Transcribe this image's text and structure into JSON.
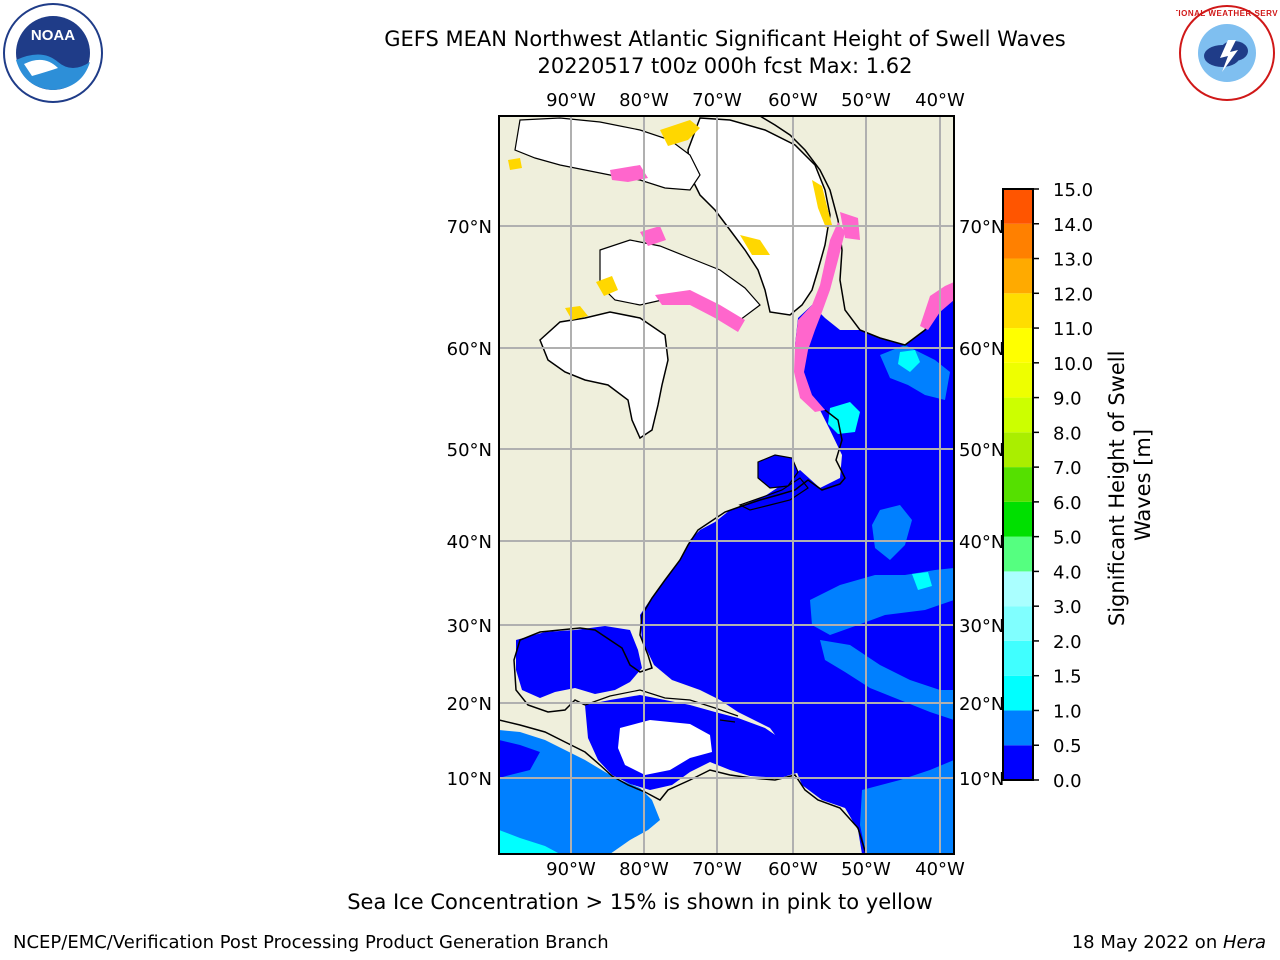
{
  "title": {
    "line1": "GEFS MEAN Northwest Atlantic Significant Height of Swell Waves",
    "line2": "20220517 t00z 000h fcst   Max: 1.62"
  },
  "map": {
    "lon_labels": [
      "90°W",
      "80°W",
      "70°W",
      "60°W",
      "50°W",
      "40°W"
    ],
    "lat_labels": [
      "70°N",
      "60°N",
      "50°N",
      "40°N",
      "30°N",
      "20°N",
      "10°N"
    ],
    "colors": {
      "land": "#efefdc",
      "ocean_0": "#0000ff",
      "ocean_05": "#0080ff",
      "ocean_10": "#00ffff",
      "ice_pink": "#ff66cc",
      "ice_yellow": "#ffd700",
      "grid": "#b0b0b0"
    }
  },
  "colorbar": {
    "tick_labels": [
      "0.0",
      "0.5",
      "1.0",
      "1.5",
      "2.0",
      "3.0",
      "4.0",
      "5.0",
      "6.0",
      "7.0",
      "8.0",
      "9.0",
      "10.0",
      "11.0",
      "12.0",
      "13.0",
      "14.0",
      "15.0"
    ],
    "colors": [
      "#0000ff",
      "#0080ff",
      "#00ffff",
      "#40ffff",
      "#80ffff",
      "#aaffff",
      "#55ff80",
      "#00e000",
      "#55e000",
      "#aaee00",
      "#ccff00",
      "#eeff00",
      "#ffff00",
      "#ffdd00",
      "#ffaa00",
      "#ff8000",
      "#ff5500",
      "#ff2a00",
      "#ff0000"
    ],
    "label_line1": "Significant Height of Swell",
    "label_line2": "Waves [m]"
  },
  "note": "Sea Ice Concentration > 15% is shown in pink to yellow",
  "footer": {
    "left": "NCEP/EMC/Verification Post Processing Product Generation Branch",
    "right_date": "18 May 2022 on ",
    "right_machine": "Hera"
  },
  "logos": {
    "noaa_text": "NOAA",
    "nws_text": "NATIONAL WEATHER SERVICE"
  }
}
